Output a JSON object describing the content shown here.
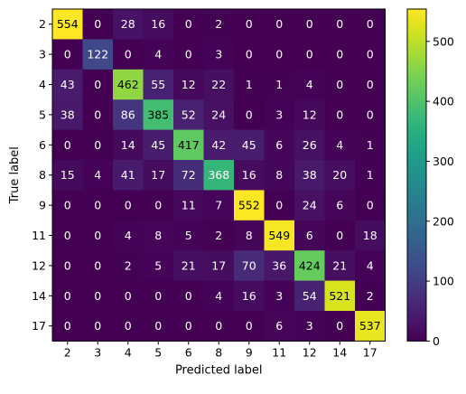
{
  "chart_data": {
    "type": "heatmap",
    "title": "",
    "xlabel": "Predicted label",
    "ylabel": "True label",
    "x_categories": [
      "2",
      "3",
      "4",
      "5",
      "6",
      "8",
      "9",
      "11",
      "12",
      "14",
      "17"
    ],
    "y_categories": [
      "2",
      "3",
      "4",
      "5",
      "6",
      "8",
      "9",
      "11",
      "12",
      "14",
      "17"
    ],
    "matrix": [
      [
        554,
        0,
        28,
        16,
        0,
        2,
        0,
        0,
        0,
        0,
        0
      ],
      [
        0,
        122,
        0,
        4,
        0,
        3,
        0,
        0,
        0,
        0,
        0
      ],
      [
        43,
        0,
        462,
        55,
        12,
        22,
        1,
        1,
        4,
        0,
        0
      ],
      [
        38,
        0,
        86,
        385,
        52,
        24,
        0,
        3,
        12,
        0,
        0
      ],
      [
        0,
        0,
        14,
        45,
        417,
        42,
        45,
        6,
        26,
        4,
        1
      ],
      [
        15,
        4,
        41,
        17,
        72,
        368,
        16,
        8,
        38,
        20,
        1
      ],
      [
        0,
        0,
        0,
        0,
        11,
        7,
        552,
        0,
        24,
        6,
        0
      ],
      [
        0,
        0,
        4,
        8,
        5,
        2,
        8,
        549,
        6,
        0,
        18
      ],
      [
        0,
        0,
        2,
        5,
        21,
        17,
        70,
        36,
        424,
        21,
        4
      ],
      [
        0,
        0,
        0,
        0,
        0,
        4,
        16,
        3,
        54,
        521,
        2
      ],
      [
        0,
        0,
        0,
        0,
        0,
        0,
        0,
        6,
        3,
        0,
        537
      ]
    ],
    "colorscale": "viridis",
    "colorbar": {
      "range": [
        0,
        554
      ],
      "ticks": [
        0,
        100,
        200,
        300,
        400,
        500
      ]
    },
    "grid": false
  }
}
